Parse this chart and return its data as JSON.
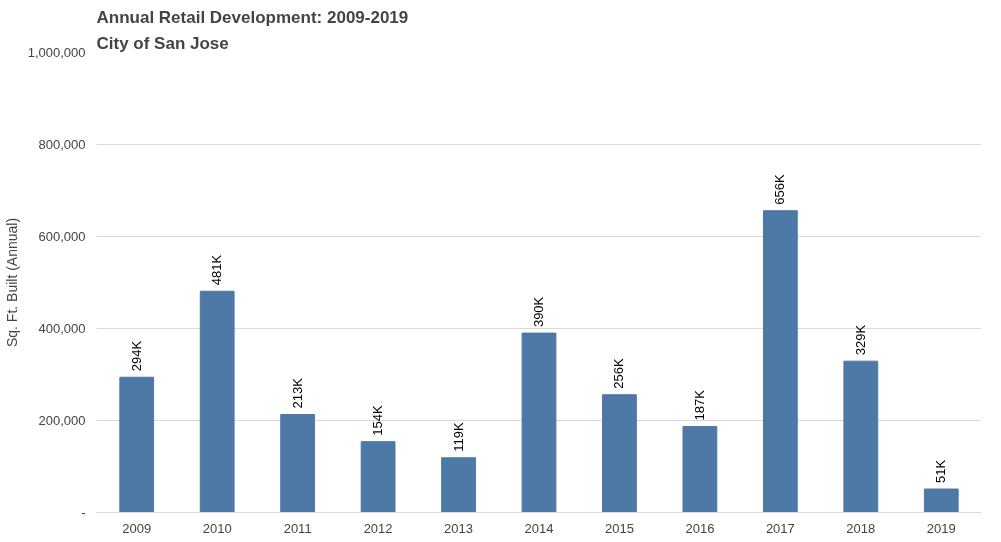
{
  "chart_data": {
    "type": "bar",
    "title": "Annual Retail Development: 2009-2019",
    "subtitle": "City of San Jose",
    "ylabel": "Sq. Ft. Built (Annual)",
    "categories": [
      "2009",
      "2010",
      "2011",
      "2012",
      "2013",
      "2014",
      "2015",
      "2016",
      "2017",
      "2018",
      "2019"
    ],
    "values": [
      294000,
      481000,
      213000,
      154000,
      119000,
      390000,
      256000,
      187000,
      656000,
      329000,
      51000
    ],
    "value_labels": [
      "294K",
      "481K",
      "213K",
      "154K",
      "119K",
      "390K",
      "256K",
      "187K",
      "656K",
      "329K",
      "51K"
    ],
    "color": "#4e78a6",
    "ylim": [
      0,
      1000000
    ],
    "yticks": [
      {
        "value": 0,
        "label": "-"
      },
      {
        "value": 200000,
        "label": "200,000"
      },
      {
        "value": 400000,
        "label": "400,000"
      },
      {
        "value": 600000,
        "label": "600,000"
      },
      {
        "value": 800000,
        "label": "800,000"
      },
      {
        "value": 1000000,
        "label": "1,000,000"
      }
    ],
    "grid": "y"
  }
}
